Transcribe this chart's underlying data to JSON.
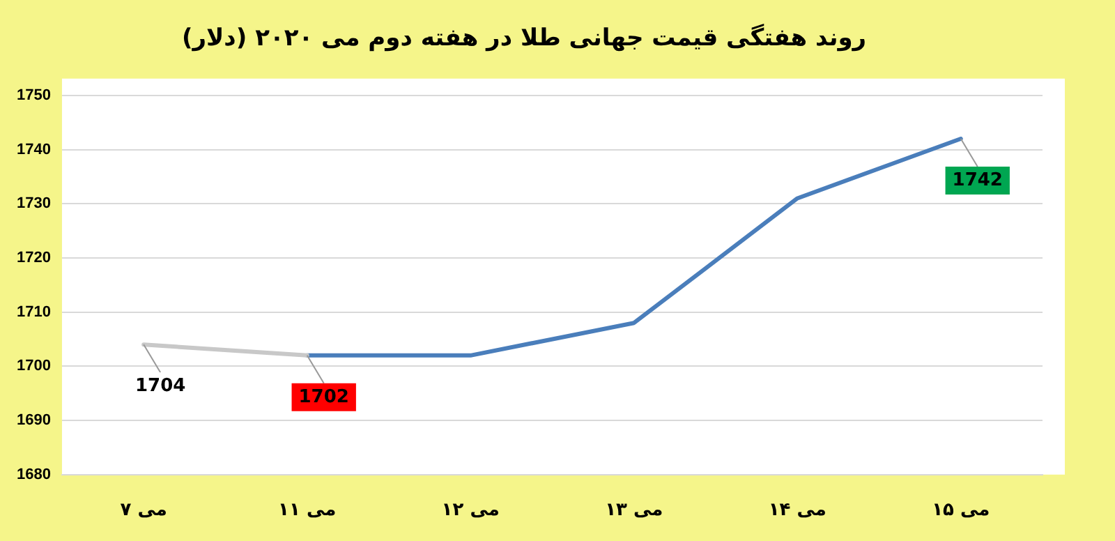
{
  "chart_data": {
    "type": "line",
    "title": "روند هفتگی قیمت جهانی طلا در هفته دوم می ۲۰۲۰ (دلار)",
    "categories": [
      "۷ می",
      "۱۱ می",
      "۱۲ می",
      "۱۳ می",
      "۱۴ می",
      "۱۵ می"
    ],
    "series": [
      {
        "color": "#c8c8c8",
        "values": [
          1704,
          1702,
          null,
          null,
          null,
          null
        ],
        "value_labels": [
          "1704",
          null,
          null,
          null,
          null,
          null
        ]
      },
      {
        "color": "#4a7ebb",
        "values": [
          null,
          1702,
          1702,
          1708,
          1731,
          1742
        ],
        "value_labels": [
          null,
          "1702",
          null,
          null,
          null,
          "1742"
        ]
      }
    ],
    "ylim": [
      1680,
      1750
    ],
    "yticks": [
      1680,
      1690,
      1700,
      1710,
      1720,
      1730,
      1740,
      1750
    ],
    "grid": "y",
    "legend": false,
    "marker": "none",
    "line_style": "solid"
  }
}
